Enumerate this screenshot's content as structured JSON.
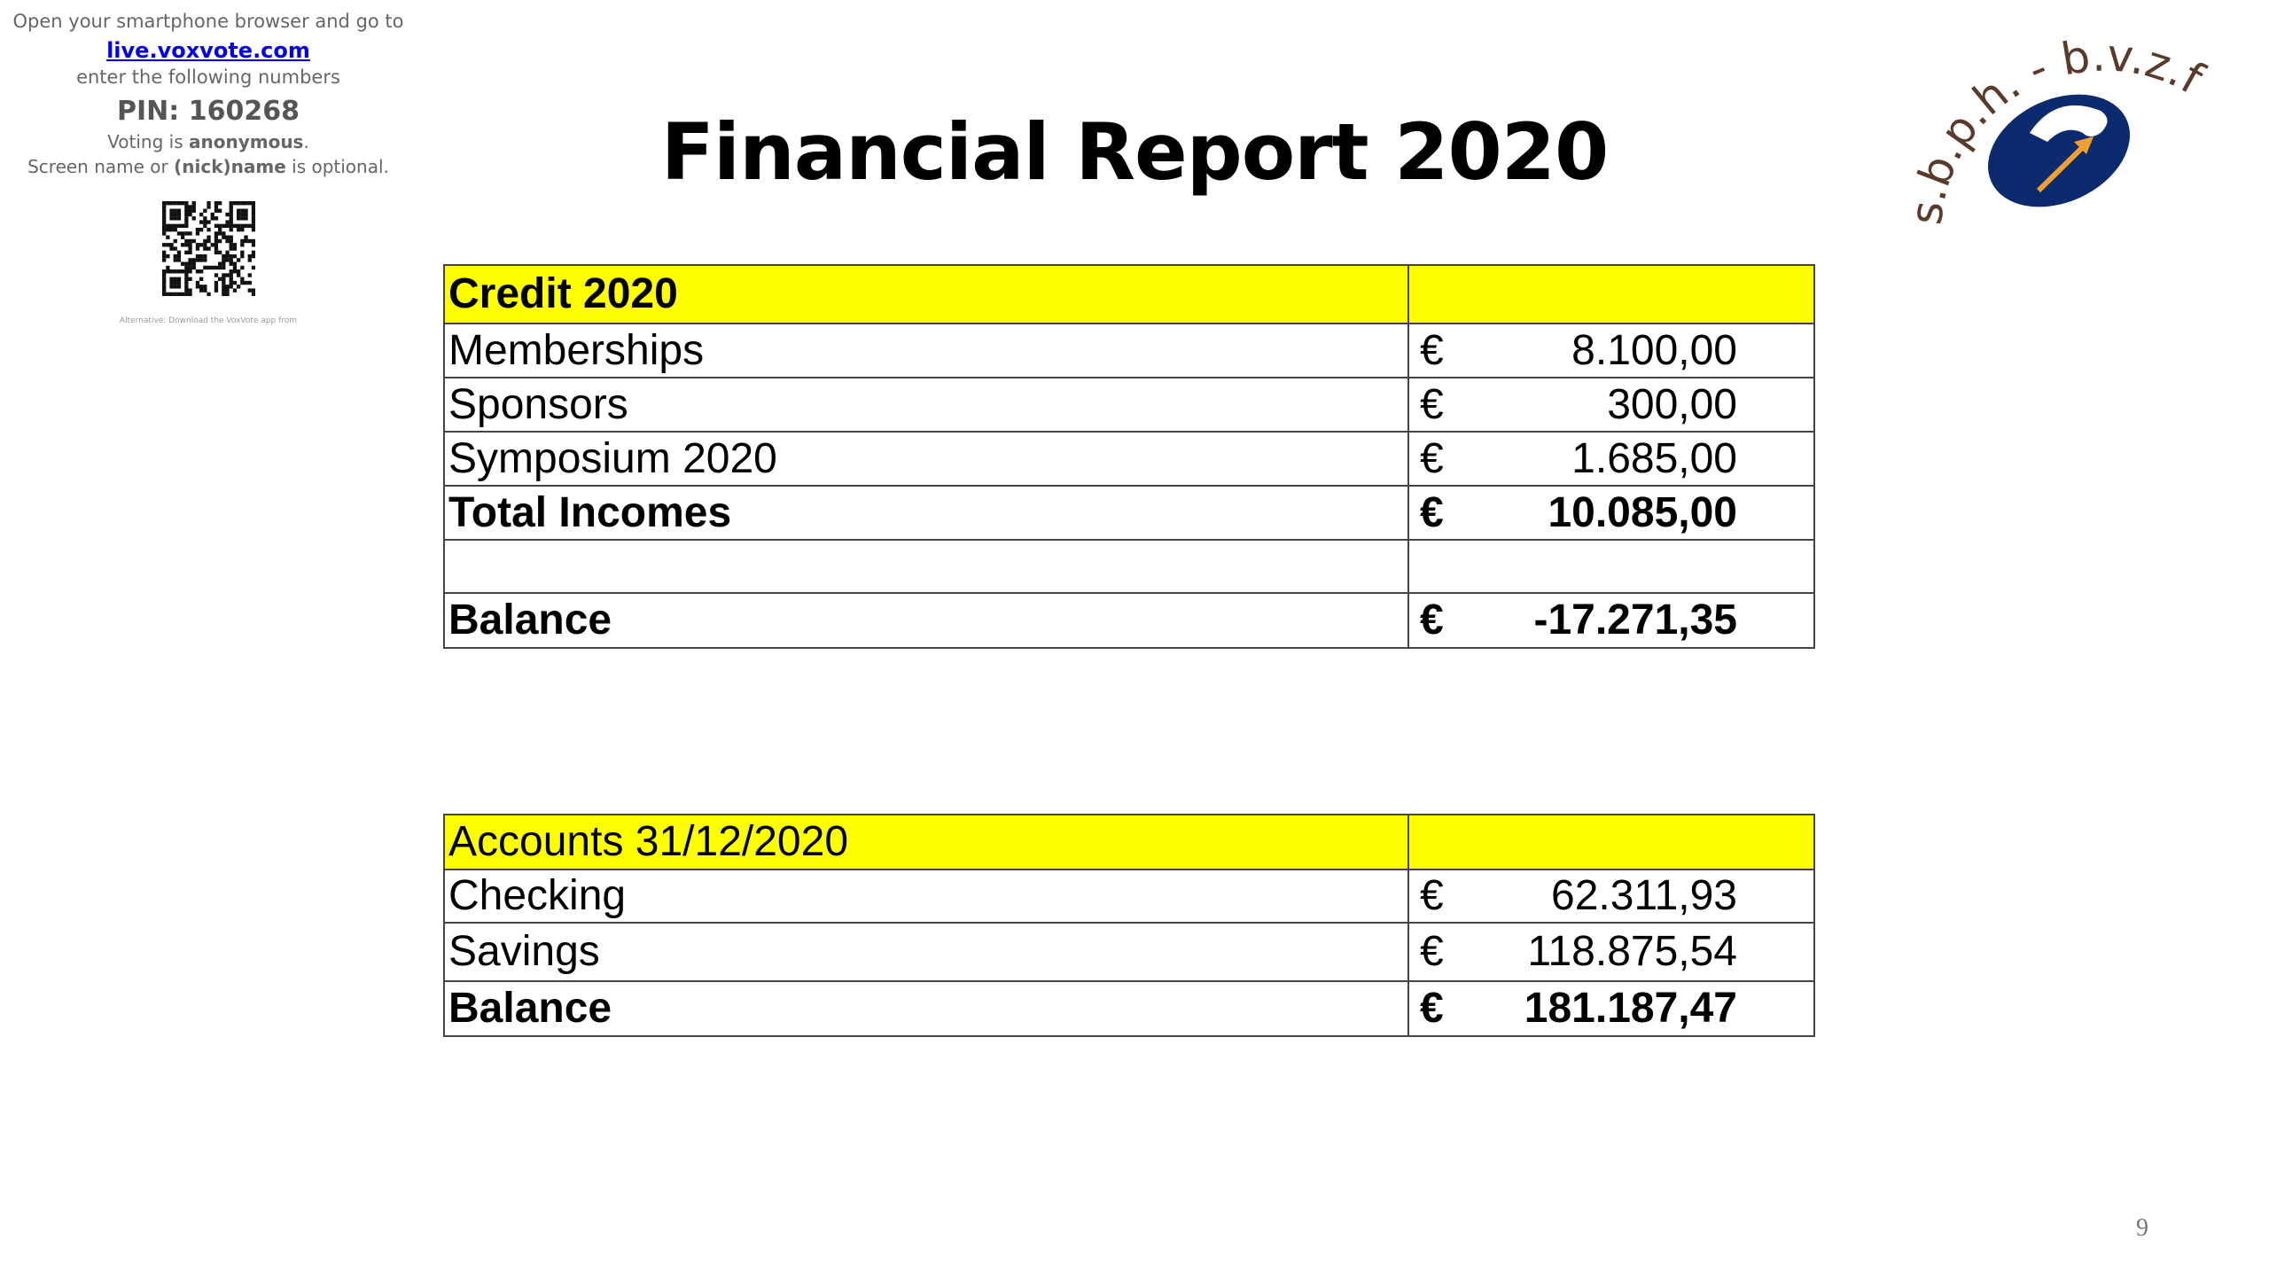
{
  "voxvote": {
    "intro": "Open your smartphone browser and go to",
    "link": "live.voxvote.com",
    "enter": "enter the following numbers",
    "pin": "PIN: 160268",
    "voting_prefix": "Voting is",
    "voting_bold": "anonymous",
    "voting_suffix": ".",
    "screen_prefix": "Screen name or",
    "screen_bold": "(nick)name",
    "screen_suffix": "is optional.",
    "alternative": "Alternative: Download the VoxVote app from"
  },
  "header": {
    "title": "Financial Report 2020",
    "logo_text": "s.b.p.h. - b.v.z.f"
  },
  "credit_table": {
    "title": "Credit 2020",
    "rows": [
      {
        "label": "Memberships",
        "currency": "€",
        "amount": "8.100,00",
        "bold": false
      },
      {
        "label": "Sponsors",
        "currency": "€",
        "amount": "300,00",
        "bold": false
      },
      {
        "label": "Symposium 2020",
        "currency": "€",
        "amount": "1.685,00",
        "bold": false
      },
      {
        "label": "Total Incomes",
        "currency": "€",
        "amount": "10.085,00",
        "bold": true
      }
    ],
    "balance": {
      "label": "Balance",
      "currency": "€",
      "amount": "-17.271,35",
      "bold": true
    }
  },
  "accounts_table": {
    "title": "Accounts 31/12/2020",
    "rows": [
      {
        "label": "Checking",
        "currency": "€",
        "amount": "62.311,93",
        "bold": false
      },
      {
        "label": "Savings",
        "currency": "€",
        "amount": "118.875,54",
        "bold": false
      },
      {
        "label": "Balance",
        "currency": "€",
        "amount": "181.187,47",
        "bold": true
      }
    ]
  },
  "footer": {
    "page_number": "9"
  }
}
